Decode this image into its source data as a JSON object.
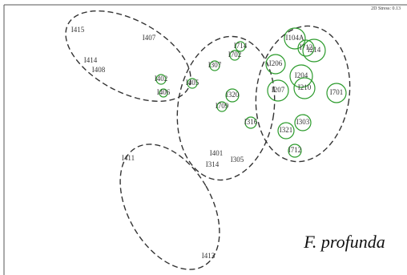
{
  "stress": "2D Stress: 0.13",
  "annotation": "F. profunda",
  "points": [
    {
      "label": "I415"
    },
    {
      "label": "I407"
    },
    {
      "label": "I414"
    },
    {
      "label": "I408"
    },
    {
      "label": "I402"
    },
    {
      "label": "I406"
    },
    {
      "label": "I405"
    },
    {
      "label": "I307"
    },
    {
      "label": "I714"
    },
    {
      "label": "I702"
    },
    {
      "label": "I104A"
    },
    {
      "label": "I712"
    },
    {
      "label": "I214"
    },
    {
      "label": "I206"
    },
    {
      "label": "I207"
    },
    {
      "label": "I204"
    },
    {
      "label": "I210"
    },
    {
      "label": "I701"
    },
    {
      "label": "I320"
    },
    {
      "label": "I709"
    },
    {
      "label": "I316"
    },
    {
      "label": "I303"
    },
    {
      "label": "I321"
    },
    {
      "label": "I712"
    },
    {
      "label": "I401"
    },
    {
      "label": "I314"
    },
    {
      "label": "I305"
    },
    {
      "label": "I411"
    },
    {
      "label": "I413"
    }
  ]
}
